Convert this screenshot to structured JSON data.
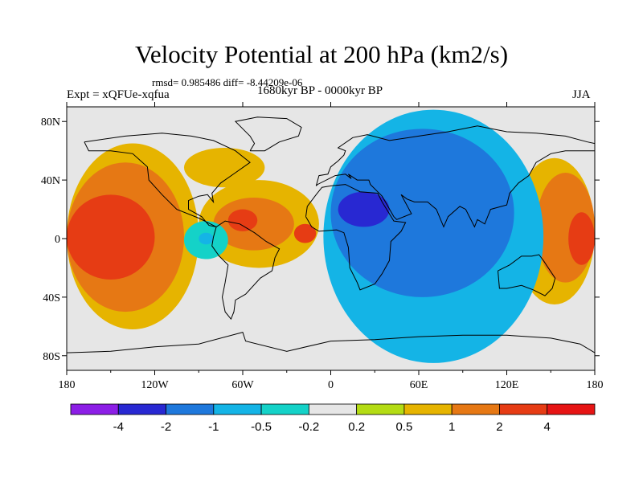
{
  "header": {
    "title": "Velocity Potential at 200 hPa (km2/s)",
    "stats": "rmsd= 0.985486  diff= -8.44209e-06",
    "experiment": "Expt = xQFUe-xqfua",
    "period": "1680kyr BP - 0000kyr BP",
    "season": "JJA"
  },
  "chart_data": {
    "type": "heatmap",
    "title": "Velocity Potential at 200 hPa (km2/s)",
    "subtitle": "1680kyr BP - 0000kyr BP",
    "xlabel": "",
    "ylabel": "",
    "xlim": [
      -180,
      180
    ],
    "ylim": [
      -90,
      90
    ],
    "x_ticks": [
      {
        "value": -180,
        "label": "180"
      },
      {
        "value": -120,
        "label": "120W"
      },
      {
        "value": -60,
        "label": "60W"
      },
      {
        "value": 0,
        "label": "0"
      },
      {
        "value": 60,
        "label": "60E"
      },
      {
        "value": 120,
        "label": "120E"
      },
      {
        "value": 180,
        "label": "180"
      }
    ],
    "y_ticks": [
      {
        "value": 80,
        "label": "80N"
      },
      {
        "value": 40,
        "label": "40N"
      },
      {
        "value": 0,
        "label": "0"
      },
      {
        "value": -40,
        "label": "40S"
      },
      {
        "value": -80,
        "label": "80S"
      }
    ],
    "colorbar": {
      "labels": [
        "-4",
        "-2",
        "-1",
        "-0.5",
        "-0.2",
        "0.2",
        "0.5",
        "1",
        "2",
        "4"
      ],
      "colors": [
        "#8c1ee6",
        "#2828d2",
        "#1e78dc",
        "#14b4e6",
        "#14d2c8",
        "#e6e6e6",
        "#b4dc14",
        "#e6b400",
        "#e67814",
        "#e63c14",
        "#e61414"
      ]
    },
    "regions": [
      {
        "level": 0.5,
        "lon": [
          -180,
          -90
        ],
        "lat": [
          -62,
          65
        ]
      },
      {
        "level": 0.5,
        "lon": [
          -100,
          -45
        ],
        "lat": [
          35,
          62
        ]
      },
      {
        "level": 0.5,
        "lon": [
          -90,
          -8
        ],
        "lat": [
          -20,
          40
        ]
      },
      {
        "level": 0.5,
        "lon": [
          125,
          180
        ],
        "lat": [
          -45,
          55
        ]
      },
      {
        "level": 1,
        "lon": [
          -180,
          -100
        ],
        "lat": [
          -50,
          52
        ]
      },
      {
        "level": 1,
        "lon": [
          -80,
          -25
        ],
        "lat": [
          -8,
          28
        ]
      },
      {
        "level": 1,
        "lon": [
          140,
          180
        ],
        "lat": [
          -30,
          45
        ]
      },
      {
        "level": 2,
        "lon": [
          -180,
          -120
        ],
        "lat": [
          -28,
          30
        ]
      },
      {
        "level": 2,
        "lon": [
          -70,
          -50
        ],
        "lat": [
          5,
          20
        ]
      },
      {
        "level": 2,
        "lon": [
          -25,
          -10
        ],
        "lat": [
          -3,
          10
        ]
      },
      {
        "level": 2,
        "lon": [
          162,
          180
        ],
        "lat": [
          -18,
          18
        ]
      },
      {
        "level": -0.2,
        "lon": [
          -100,
          -70
        ],
        "lat": [
          -14,
          12
        ]
      },
      {
        "level": -0.5,
        "lon": [
          -90,
          -80
        ],
        "lat": [
          -4,
          4
        ]
      },
      {
        "level": -0.5,
        "lon": [
          -5,
          145
        ],
        "lat": [
          -85,
          88
        ]
      },
      {
        "level": -1,
        "lon": [
          0,
          125
        ],
        "lat": [
          -40,
          75
        ]
      },
      {
        "level": -2,
        "lon": [
          5,
          40
        ],
        "lat": [
          8,
          32
        ]
      }
    ]
  }
}
